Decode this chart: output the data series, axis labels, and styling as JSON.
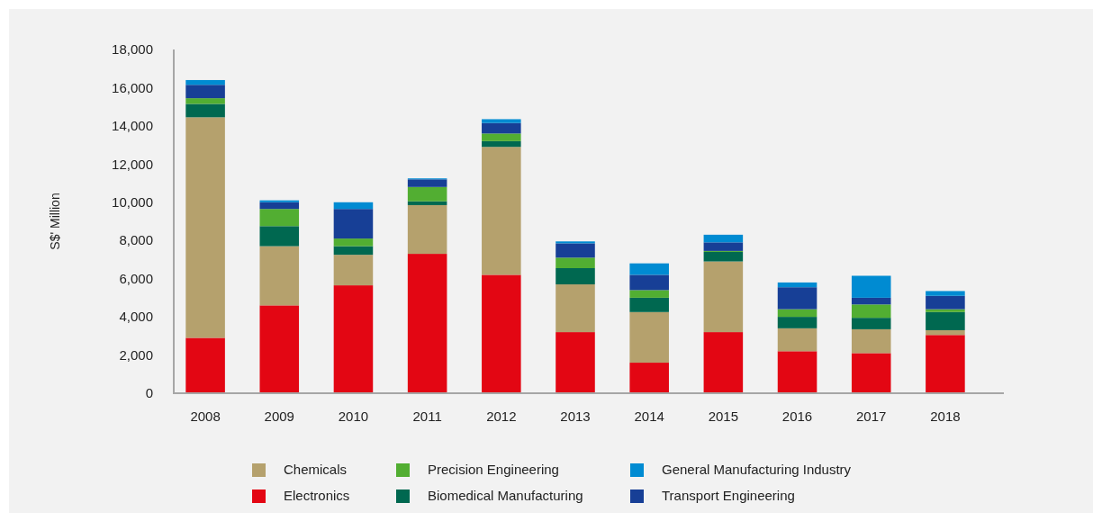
{
  "chart_data": {
    "type": "bar",
    "stacked": true,
    "ylabel": "S$' Million",
    "categories": [
      "2008",
      "2009",
      "2010",
      "2011",
      "2012",
      "2013",
      "2014",
      "2015",
      "2016",
      "2017",
      "2018"
    ],
    "series": [
      {
        "name": "Electronics",
        "color": "#e30613",
        "values": [
          2900,
          4600,
          5650,
          7300,
          6200,
          3200,
          1600,
          3200,
          2200,
          2100,
          3050
        ]
      },
      {
        "name": "Chemicals",
        "color": "#b5a16d",
        "values": [
          11550,
          3100,
          1600,
          2550,
          6700,
          2500,
          2650,
          3700,
          1200,
          1250,
          250
        ]
      },
      {
        "name": "Biomedical Manufacturing",
        "color": "#006850",
        "values": [
          700,
          1050,
          450,
          200,
          300,
          850,
          750,
          500,
          600,
          600,
          950
        ]
      },
      {
        "name": "Precision Engineering",
        "color": "#52ae32",
        "values": [
          300,
          900,
          400,
          750,
          400,
          550,
          400,
          50,
          400,
          700,
          150
        ]
      },
      {
        "name": "Transport Engineering",
        "color": "#173f96",
        "values": [
          700,
          350,
          1550,
          400,
          550,
          750,
          800,
          450,
          1150,
          350,
          700
        ]
      },
      {
        "name": "General Manufacturing Industry",
        "color": "#008bd2",
        "values": [
          250,
          100,
          350,
          50,
          200,
          100,
          600,
          400,
          250,
          1150,
          250
        ]
      }
    ],
    "ylim": [
      0,
      18000
    ],
    "yticks": [
      {
        "value": 0,
        "label": "0"
      },
      {
        "value": 2000,
        "label": "2,000"
      },
      {
        "value": 4000,
        "label": "4,000"
      },
      {
        "value": 6000,
        "label": "6,000"
      },
      {
        "value": 8000,
        "label": "8,000"
      },
      {
        "value": 10000,
        "label": "10,000"
      },
      {
        "value": 12000,
        "label": "12,000"
      },
      {
        "value": 14000,
        "label": "14,000"
      },
      {
        "value": 16000,
        "label": "16,000"
      },
      {
        "value": 18000,
        "label": "18,000"
      }
    ],
    "legend": "bottom"
  }
}
